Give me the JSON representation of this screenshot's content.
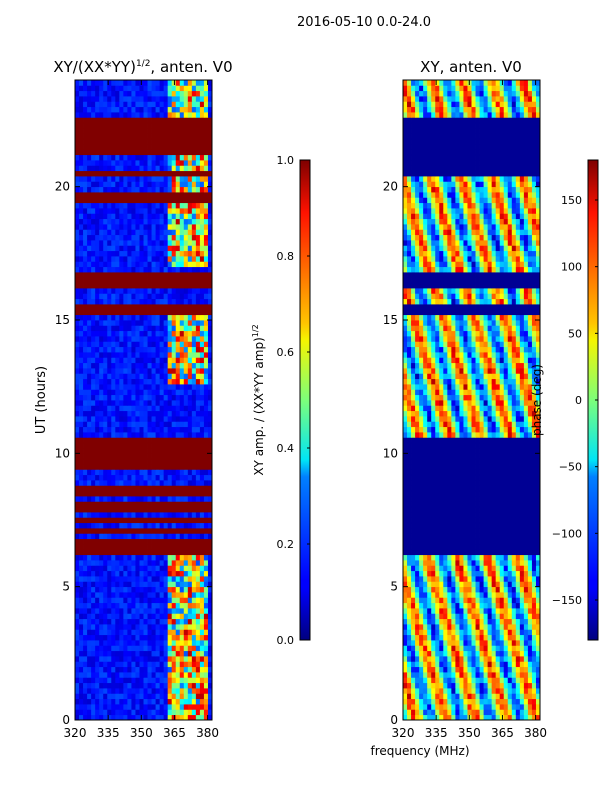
{
  "suptitle": "2016-05-10 0.0-24.0",
  "chart_data": [
    {
      "type": "heatmap",
      "title_main": "XY/(XX*YY)",
      "title_sup": "1/2",
      "title_tail": ", anten. V0",
      "xlabel": "",
      "ylabel": "UT (hours)",
      "xlim": [
        320,
        382
      ],
      "ylim": [
        0,
        24
      ],
      "xticks": [
        320,
        335,
        350,
        365,
        380
      ],
      "yticks": [
        0,
        5,
        10,
        15,
        20
      ],
      "colorbar": {
        "label_main": "XY amp. / (XX*YY amp)",
        "label_sup": "1/2",
        "range": [
          0.0,
          1.0
        ],
        "ticks": [
          "0.0",
          "0.2",
          "0.4",
          "0.6",
          "0.8",
          "1.0"
        ],
        "tick_values": [
          0.0,
          0.2,
          0.4,
          0.6,
          0.8,
          1.0
        ],
        "colormap": "jet"
      },
      "saturated_bands_hours": [
        [
          6.2,
          6.7
        ],
        [
          7.0,
          7.2
        ],
        [
          7.4,
          7.6
        ],
        [
          7.9,
          8.2
        ],
        [
          8.5,
          8.8
        ],
        [
          9.5,
          10.6
        ],
        [
          15.2,
          15.6
        ],
        [
          16.2,
          16.8
        ],
        [
          19.4,
          19.9
        ],
        [
          20.5,
          20.7
        ],
        [
          21.2,
          22.1
        ],
        [
          22.3,
          22.6
        ]
      ]
    },
    {
      "type": "heatmap",
      "title": "XY, anten. V0",
      "xlabel": "frequency (MHz)",
      "ylabel": "",
      "xlim": [
        320,
        382
      ],
      "ylim": [
        0,
        24
      ],
      "xticks": [
        320,
        335,
        350,
        365,
        380
      ],
      "yticks": [
        0,
        5,
        10,
        15,
        20
      ],
      "colorbar": {
        "label": "phase (deg)",
        "range": [
          -180,
          180
        ],
        "ticks": [
          "−150",
          "−100",
          "−50",
          "0",
          "50",
          "100",
          "150"
        ],
        "tick_values": [
          -150,
          -100,
          -50,
          0,
          50,
          100,
          150
        ],
        "colormap": "jet"
      },
      "flagged_bands_hours": [
        [
          6.2,
          10.6
        ],
        [
          15.2,
          15.6
        ],
        [
          16.2,
          16.8
        ],
        [
          20.5,
          22.1
        ],
        [
          22.3,
          22.6
        ]
      ]
    }
  ]
}
